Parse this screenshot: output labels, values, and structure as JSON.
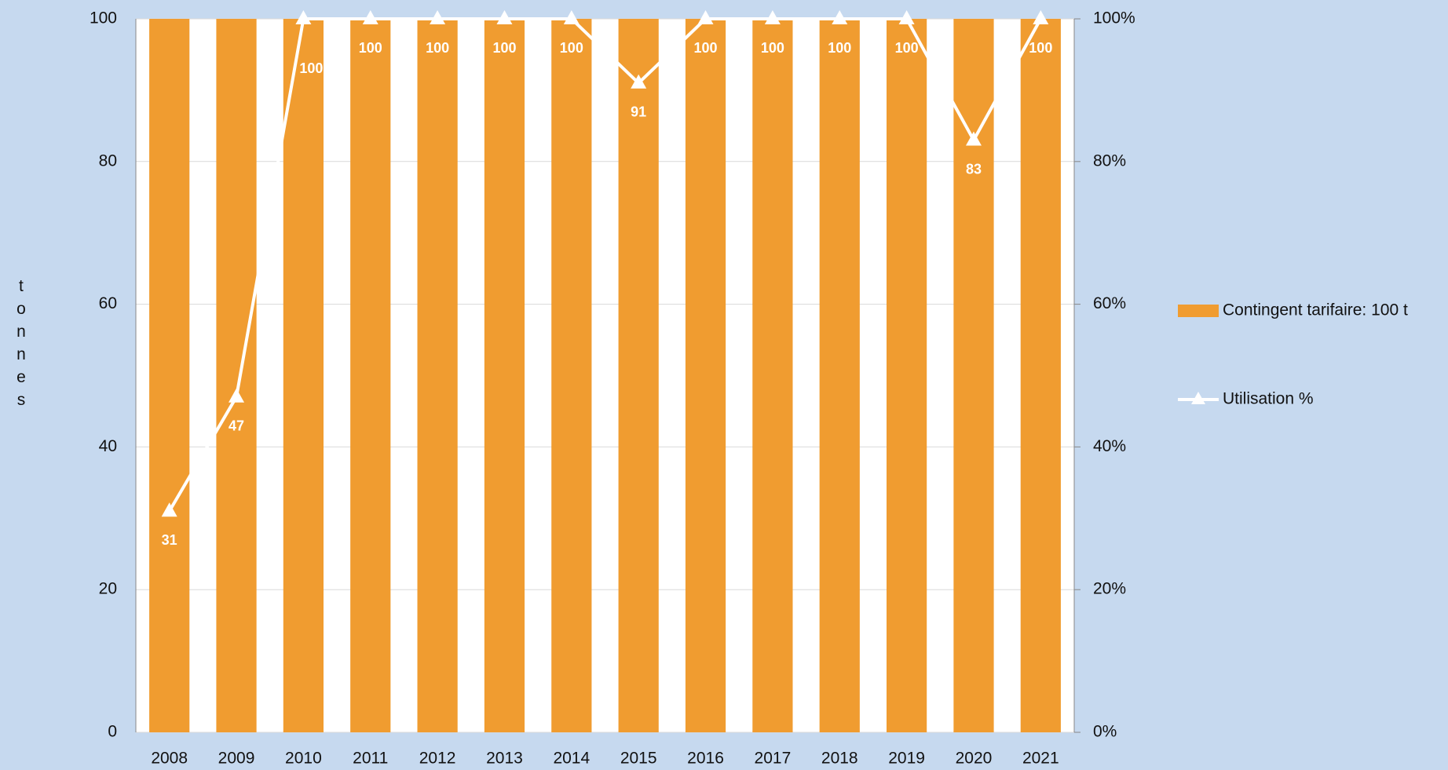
{
  "chart_data": {
    "type": "bar",
    "y_label": "tonnes",
    "categories": [
      "2008",
      "2009",
      "2010",
      "2011",
      "2012",
      "2013",
      "2014",
      "2015",
      "2016",
      "2017",
      "2018",
      "2019",
      "2020",
      "2021"
    ],
    "series": [
      {
        "name": "Contingent tarifaire: 100 t",
        "type": "bar",
        "color": "#f09c30",
        "values": [
          100,
          100,
          100,
          100,
          100,
          100,
          100,
          100,
          100,
          100,
          100,
          100,
          100,
          100
        ]
      },
      {
        "name": "Utilisation %",
        "type": "line",
        "axis": "y2",
        "color": "#ffffff",
        "values": [
          31,
          47,
          100,
          100,
          100,
          100,
          100,
          91,
          100,
          100,
          100,
          100,
          83,
          100
        ]
      }
    ],
    "ylim": [
      0,
      100
    ],
    "yticks": [
      0,
      20,
      40,
      60,
      80,
      100
    ],
    "y2lim": [
      0,
      100
    ],
    "y2ticks": [
      {
        "value": 0,
        "label": "0%"
      },
      {
        "value": 20,
        "label": "20%"
      },
      {
        "value": 40,
        "label": "40%"
      },
      {
        "value": 60,
        "label": "60%"
      },
      {
        "value": 80,
        "label": "80%"
      },
      {
        "value": 100,
        "label": "100%"
      }
    ],
    "grid": true,
    "legend": "right"
  }
}
